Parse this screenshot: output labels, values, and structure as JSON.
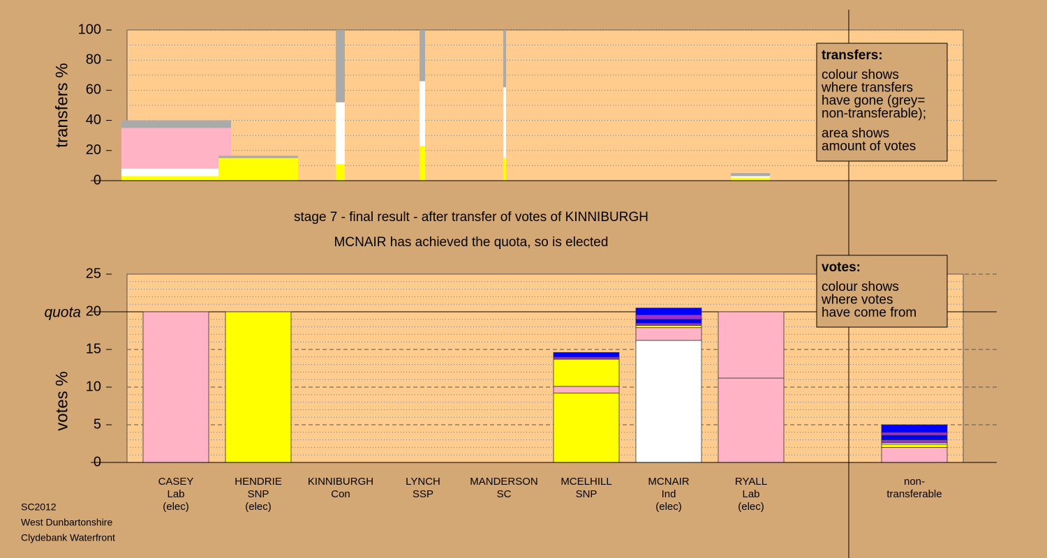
{
  "chart_data": [
    {
      "type": "transfer-bars",
      "ylabel": "transfers %",
      "ylim": [
        0,
        100
      ],
      "yticks": [
        0,
        20,
        40,
        60,
        80,
        100
      ],
      "minor_yticks": [
        10,
        30,
        50,
        70,
        90
      ],
      "transfers": [
        {
          "segments": [
            {
              "color": "#ffff00",
              "value": 3
            },
            {
              "color": "#ffffff",
              "value": 5
            },
            {
              "color": "#ffb3c4",
              "value": 27
            },
            {
              "color": "#aaaaaa",
              "value": 5
            }
          ]
        },
        {
          "segments": [
            {
              "color": "#ffff00",
              "value": 15
            },
            {
              "color": "#aaaaaa",
              "value": 1.5
            }
          ]
        },
        {
          "segments": [
            {
              "color": "#ffff00",
              "value": 11
            },
            {
              "color": "#ffffff",
              "value": 41
            },
            {
              "color": "#aaaaaa",
              "value": 48
            }
          ]
        },
        {
          "segments": [
            {
              "color": "#ffff00",
              "value": 23
            },
            {
              "color": "#ffffff",
              "value": 43
            },
            {
              "color": "#aaaaaa",
              "value": 34
            }
          ]
        },
        {
          "segments": [
            {
              "color": "#ffff00",
              "value": 15
            },
            {
              "color": "#ffffff",
              "value": 47
            },
            {
              "color": "#aaaaaa",
              "value": 38
            }
          ]
        },
        {
          "segments": [
            {
              "color": "#ffff00",
              "value": 2
            },
            {
              "color": "#ffffff",
              "value": 1
            },
            {
              "color": "#aaaaaa",
              "value": 2
            }
          ]
        }
      ],
      "legend": {
        "title": "transfers:",
        "lines": [
          "colour shows",
          "where transfers",
          "have gone (grey=",
          "non-transferable);",
          "area shows",
          "amount of votes"
        ]
      }
    },
    {
      "type": "stacked-bar",
      "title": [
        "stage 7 - final result - after transfer of votes of KINNIBURGH",
        "MCNAIR has achieved the quota, so is elected"
      ],
      "ylabel": "votes %",
      "ylim": [
        0,
        25
      ],
      "yticks": [
        0,
        5,
        10,
        15,
        20,
        25
      ],
      "minor_yticks": [
        1,
        2,
        3,
        4,
        6,
        7,
        8,
        9,
        11,
        12,
        13,
        14,
        16,
        17,
        18,
        19,
        21,
        22,
        23,
        24
      ],
      "quota": 20,
      "quota_label": "quota",
      "categories": [
        [
          "CASEY",
          "Lab",
          "(elec)"
        ],
        [
          "HENDRIE",
          "SNP",
          "(elec)"
        ],
        [
          "KINNIBURGH",
          "Con"
        ],
        [
          "LYNCH",
          "SSP"
        ],
        [
          "MANDERSON",
          "SC"
        ],
        [
          "MCELHILL",
          "SNP"
        ],
        [
          "MCNAIR",
          "Ind",
          "(elec)"
        ],
        [
          "RYALL",
          "Lab",
          "(elec)"
        ],
        [
          "non-",
          "transferable"
        ]
      ],
      "bars": [
        {
          "segments": [
            {
              "color": "#ffb3c4",
              "value": 20
            }
          ]
        },
        {
          "segments": [
            {
              "color": "#ffff00",
              "value": 20
            }
          ]
        },
        {
          "segments": [
            {
              "color": "#ffb3c4",
              "value": 0
            }
          ]
        },
        {
          "segments": [
            {
              "color": "#ffb3c4",
              "value": 0
            }
          ]
        },
        {
          "segments": [
            {
              "color": "#ffb3c4",
              "value": 0
            }
          ]
        },
        {
          "segments": [
            {
              "color": "#ffff00",
              "value": 9.2
            },
            {
              "color": "#ffb3c4",
              "value": 0.9
            },
            {
              "color": "#ffff00",
              "value": 3.6
            },
            {
              "color": "#9933cc",
              "value": 0.3
            },
            {
              "color": "#0000ff",
              "value": 0.6
            }
          ]
        },
        {
          "segments": [
            {
              "color": "#ffffff",
              "value": 16.2
            },
            {
              "color": "#ffb3c4",
              "value": 1.7
            },
            {
              "color": "#ffff00",
              "value": 0.3
            },
            {
              "color": "#9933cc",
              "value": 0.3
            },
            {
              "color": "#0000ff",
              "value": 0.5
            },
            {
              "color": "#9933cc",
              "value": 0.6
            },
            {
              "color": "#0000ff",
              "value": 0.9
            }
          ]
        },
        {
          "segments": [
            {
              "color": "#ffb3c4",
              "value": 11.2
            },
            {
              "color": "#ffb3c4",
              "value": 8.8
            }
          ]
        },
        {
          "segments": [
            {
              "color": "#ffb3c4",
              "value": 2.0
            },
            {
              "color": "#ffff00",
              "value": 0.4
            },
            {
              "color": "#ffffff",
              "value": 0.2
            },
            {
              "color": "#9933cc",
              "value": 0.4
            },
            {
              "color": "#0000ff",
              "value": 0.6
            },
            {
              "color": "#9933cc",
              "value": 0.4
            },
            {
              "color": "#0000ff",
              "value": 1.0
            }
          ]
        }
      ],
      "legend": {
        "title": "votes:",
        "lines": [
          "colour shows",
          "where votes",
          "have come from"
        ]
      }
    }
  ],
  "footer": [
    "SC2012",
    "West Dunbartonshire",
    "Clydebank Waterfront"
  ]
}
